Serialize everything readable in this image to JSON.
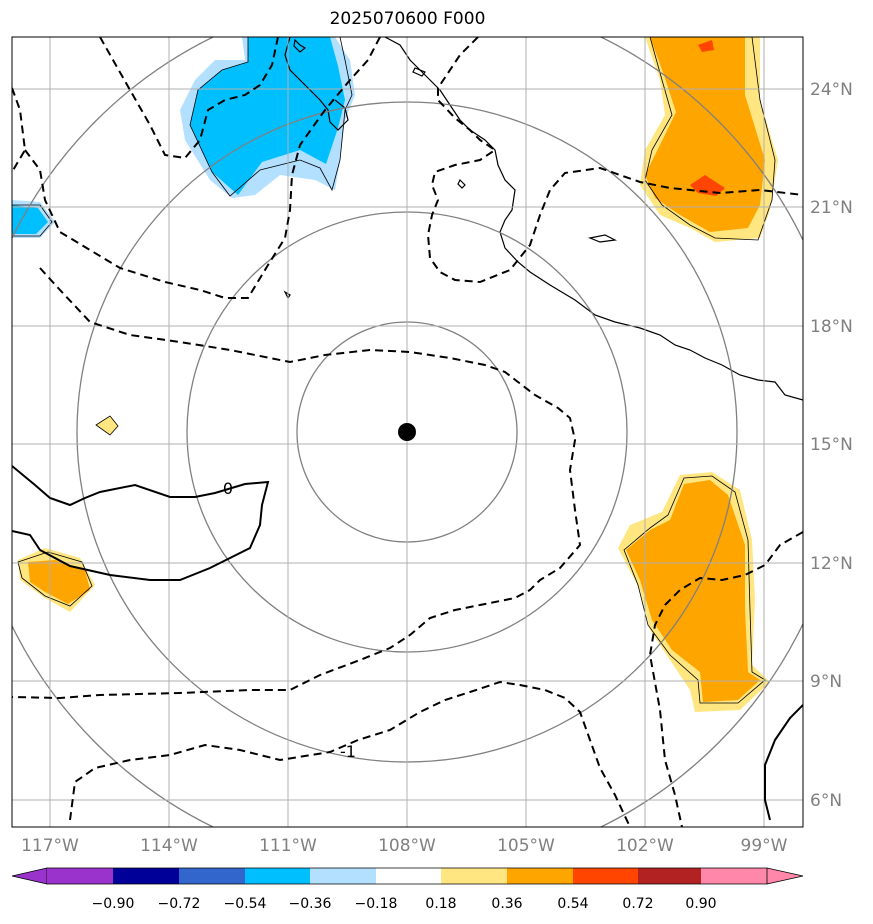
{
  "map": {
    "title": "2025070600 F000",
    "lon_labels": [
      "117°W",
      "114°W",
      "111°W",
      "108°W",
      "105°W",
      "102°W",
      "99°W"
    ],
    "lat_labels": [
      "24°N",
      "21°N",
      "18°N",
      "15°N",
      "12°N",
      "9°N",
      "6°N"
    ],
    "lon_values": [
      -117,
      -114,
      -111,
      -108,
      -105,
      -102,
      -99
    ],
    "lat_values": [
      24,
      21,
      18,
      15,
      12,
      9,
      6
    ],
    "center": {
      "lon": -108.0,
      "lat": 15.3
    },
    "contour_labels": [
      "0",
      "-1"
    ],
    "colorbar": {
      "ticks": [
        "−0.90",
        "−0.72",
        "−0.54",
        "−0.36",
        "−0.18",
        "0.18",
        "0.36",
        "0.54",
        "0.72",
        "0.90"
      ],
      "colors": [
        "#9933cc",
        "#000099",
        "#3366cc",
        "#00bfff",
        "#b3e0ff",
        "#ffffff",
        "#ffe680",
        "#ffa500",
        "#ff4500",
        "#b22222",
        "#ff88aa"
      ]
    },
    "colors": {
      "blue_fill": "#00bfff",
      "light_blue_fill": "#b3e0ff",
      "orange_fill": "#ffa500",
      "yellow_fill": "#ffe680",
      "red_fill": "#ff4500",
      "range_ring": "#808080",
      "grid": "#b0b0b0"
    }
  }
}
